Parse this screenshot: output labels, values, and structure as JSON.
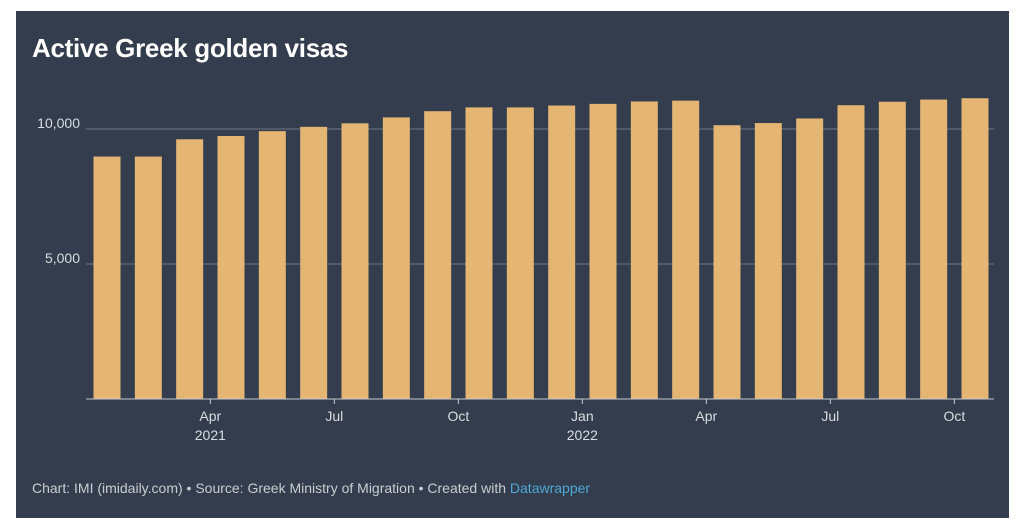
{
  "title": "Active Greek golden visas",
  "footer": {
    "credit": "Chart: IMI (imidaily.com) • Source: Greek Ministry of Migration • Created with ",
    "link": "Datawrapper"
  },
  "colors": {
    "background": "#333d4d",
    "bar": "#e5b673",
    "grid": "#6f7683",
    "text": "#d8dbe0",
    "link": "#4fa8d4"
  },
  "chart_data": {
    "type": "bar",
    "title": "Active Greek golden visas",
    "xlabel": "",
    "ylabel": "",
    "ylim": [
      0,
      11500
    ],
    "y_ticks": [
      {
        "value": 5000,
        "label": "5,000"
      },
      {
        "value": 10000,
        "label": "10,000"
      }
    ],
    "categories": [
      "2021-02",
      "2021-03",
      "2021-04",
      "2021-05",
      "2021-06",
      "2021-07",
      "2021-08",
      "2021-09",
      "2021-10",
      "2021-11",
      "2021-12",
      "2022-01",
      "2022-02",
      "2022-03",
      "2022-04",
      "2022-05",
      "2022-06",
      "2022-07",
      "2022-08",
      "2022-09",
      "2022-10",
      "2022-11"
    ],
    "values": [
      8980,
      8980,
      9620,
      9740,
      9920,
      10080,
      10210,
      10430,
      10660,
      10800,
      10800,
      10870,
      10930,
      11020,
      11050,
      10140,
      10220,
      10390,
      10880,
      11010,
      11090,
      11140
    ],
    "x_ticks": [
      {
        "index": 2,
        "label": "Apr",
        "sublabel": "2021"
      },
      {
        "index": 5,
        "label": "Jul",
        "sublabel": ""
      },
      {
        "index": 8,
        "label": "Oct",
        "sublabel": ""
      },
      {
        "index": 11,
        "label": "Jan",
        "sublabel": "2022"
      },
      {
        "index": 14,
        "label": "Apr",
        "sublabel": ""
      },
      {
        "index": 17,
        "label": "Jul",
        "sublabel": ""
      },
      {
        "index": 20,
        "label": "Oct",
        "sublabel": ""
      }
    ]
  }
}
